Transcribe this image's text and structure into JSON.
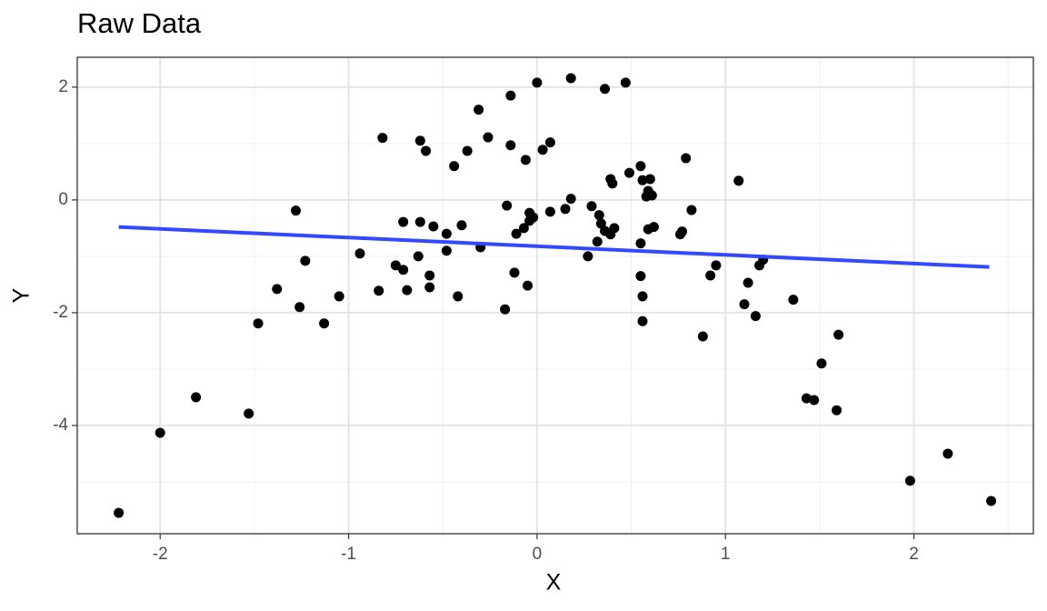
{
  "chart_data": {
    "type": "scatter",
    "title": "Raw Data",
    "x_label": "X",
    "y_label": "Y",
    "xlim": [
      -2.44,
      2.634
    ],
    "ylim": [
      -5.92,
      2.53
    ],
    "xticks": [
      -2,
      -1,
      0,
      1,
      2
    ],
    "yticks": [
      -4,
      -2,
      0,
      2
    ],
    "grid": true,
    "series": [
      {
        "type": "scatter",
        "color": "#000000",
        "x": [
          -2.22,
          -2.0,
          -1.81,
          -1.53,
          -1.48,
          -1.38,
          -1.28,
          -1.26,
          -1.23,
          -1.13,
          -1.05,
          -0.94,
          -0.84,
          -0.82,
          -0.75,
          -0.71,
          -0.71,
          -0.69,
          -0.63,
          -0.62,
          -0.62,
          -0.59,
          -0.57,
          -0.57,
          -0.55,
          -0.48,
          -0.48,
          -0.44,
          -0.42,
          -0.4,
          -0.37,
          -0.31,
          -0.3,
          -0.26,
          -0.17,
          -0.16,
          -0.14,
          -0.14,
          -0.12,
          -0.11,
          -0.07,
          -0.06,
          -0.05,
          -0.04,
          -0.04,
          -0.02,
          0.0,
          0.03,
          0.07,
          0.07,
          0.15,
          0.18,
          0.18,
          0.27,
          0.29,
          0.32,
          0.33,
          0.34,
          0.36,
          0.36,
          0.39,
          0.39,
          0.4,
          0.41,
          0.47,
          0.49,
          0.55,
          0.55,
          0.56,
          0.58,
          0.59,
          0.59,
          0.61,
          0.62,
          0.55,
          0.56,
          0.6,
          0.56,
          0.76,
          0.77,
          0.79,
          0.82,
          0.88,
          0.92,
          0.95,
          1.07,
          1.1,
          1.12,
          1.16,
          1.18,
          1.2,
          1.36,
          1.43,
          1.47,
          1.51,
          1.59,
          1.6,
          1.98,
          2.18,
          2.41
        ],
        "values": [
          -5.55,
          -4.13,
          -3.5,
          -3.79,
          -2.19,
          -1.58,
          -0.19,
          -1.9,
          -1.08,
          -2.19,
          -1.71,
          -0.95,
          -1.61,
          1.1,
          -1.16,
          -0.39,
          -1.24,
          -1.6,
          -1.0,
          1.05,
          -0.39,
          0.87,
          -1.34,
          -1.55,
          -0.47,
          -0.6,
          -0.9,
          0.6,
          -1.71,
          -0.45,
          0.87,
          1.6,
          -0.84,
          1.11,
          -1.94,
          -0.1,
          1.85,
          0.97,
          -1.29,
          -0.6,
          -0.5,
          0.71,
          -1.52,
          -0.37,
          -0.23,
          -0.31,
          2.08,
          0.89,
          1.02,
          -0.21,
          -0.16,
          2.16,
          0.02,
          -1.0,
          -0.11,
          -0.74,
          -0.27,
          -0.42,
          -0.55,
          1.97,
          0.37,
          -0.61,
          0.29,
          -0.5,
          2.08,
          0.48,
          -0.77,
          -1.35,
          -1.71,
          0.06,
          0.16,
          -0.52,
          0.08,
          -0.48,
          0.6,
          0.35,
          0.37,
          -2.15,
          -0.61,
          -0.56,
          0.74,
          -0.18,
          -2.42,
          -1.34,
          -1.16,
          0.34,
          -1.85,
          -1.47,
          -2.06,
          -1.16,
          -1.06,
          -1.77,
          -3.52,
          -3.55,
          -2.9,
          -3.73,
          -2.39,
          -4.98,
          -4.5,
          -5.34
        ]
      },
      {
        "type": "line",
        "color": "#3349ff",
        "x": [
          -2.22,
          2.4
        ],
        "values": [
          -0.48,
          -1.19
        ]
      }
    ]
  }
}
